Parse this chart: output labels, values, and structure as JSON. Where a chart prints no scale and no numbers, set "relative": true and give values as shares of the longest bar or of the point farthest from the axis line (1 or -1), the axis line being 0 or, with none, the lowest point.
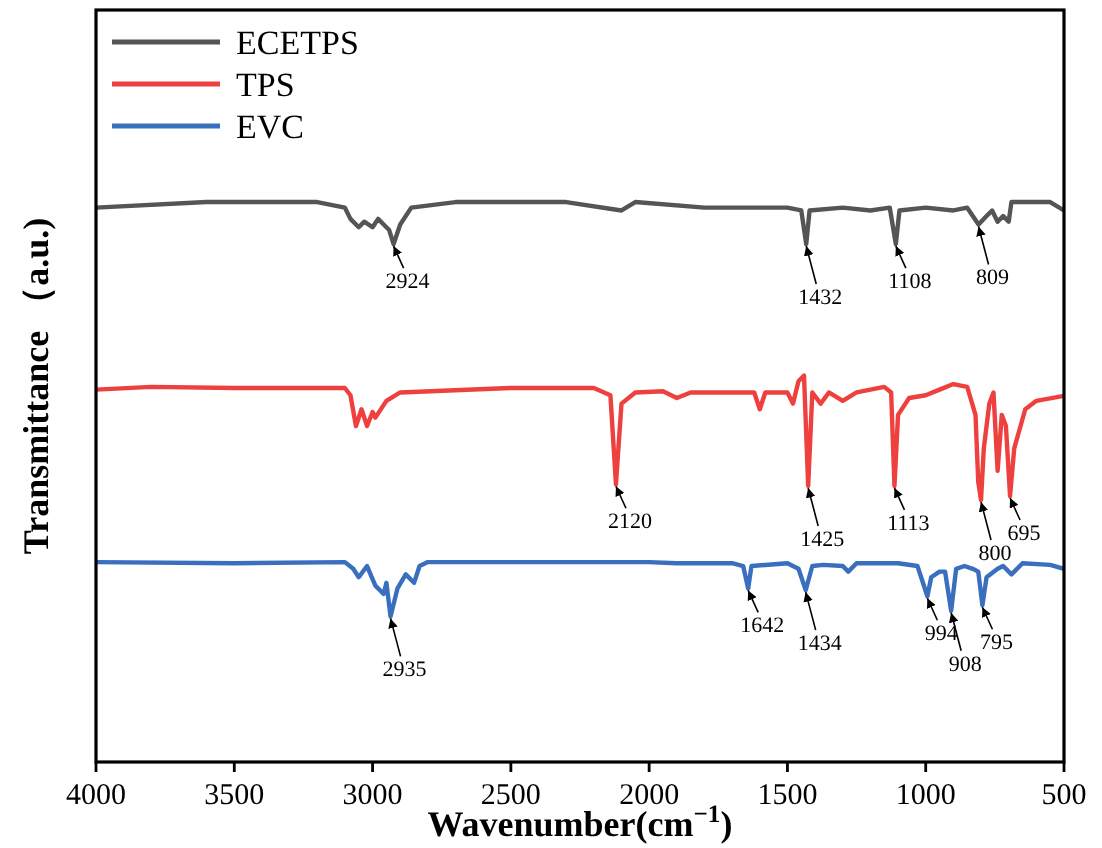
{
  "chart_data": {
    "type": "line",
    "relative": true,
    "xlabel": "Wavenumber(cm$^{−1}$)",
    "ylabel": "Transmittance （a.u.)",
    "xlim": [
      4000,
      500
    ],
    "xticks": [
      4000,
      3500,
      3000,
      2500,
      2000,
      1500,
      1000,
      500
    ],
    "tick_labels": "x",
    "legend": "top left",
    "grid": false,
    "series": [
      {
        "name": "ECETPS",
        "color": "#555555",
        "x": [
          4000,
          3600,
          3200,
          3100,
          3080,
          3050,
          3030,
          3000,
          2980,
          2960,
          2940,
          2924,
          2900,
          2860,
          2700,
          2300,
          2100,
          2050,
          1800,
          1500,
          1450,
          1432,
          1420,
          1300,
          1200,
          1130,
          1108,
          1095,
          1000,
          900,
          850,
          809,
          780,
          760,
          740,
          720,
          700,
          690,
          550,
          500
        ],
        "values": [
          0.99,
          1,
          1,
          0.99,
          0.97,
          0.955,
          0.965,
          0.955,
          0.97,
          0.96,
          0.95,
          0.925,
          0.96,
          0.99,
          1,
          1,
          0.985,
          1,
          0.99,
          0.99,
          0.985,
          0.925,
          0.985,
          0.99,
          0.985,
          0.99,
          0.925,
          0.985,
          0.99,
          0.985,
          0.99,
          0.96,
          0.975,
          0.985,
          0.965,
          0.975,
          0.965,
          1,
          1,
          0.985
        ]
      },
      {
        "name": "TPS",
        "color": "#ef4040",
        "x": [
          4000,
          3800,
          3500,
          3100,
          3080,
          3060,
          3040,
          3020,
          3000,
          2990,
          2950,
          2900,
          2500,
          2200,
          2140,
          2120,
          2100,
          2050,
          1950,
          1900,
          1850,
          1700,
          1620,
          1600,
          1580,
          1500,
          1480,
          1460,
          1440,
          1425,
          1410,
          1380,
          1350,
          1300,
          1250,
          1200,
          1150,
          1125,
          1113,
          1100,
          1060,
          1000,
          950,
          900,
          850,
          820,
          810,
          800,
          790,
          770,
          755,
          740,
          725,
          710,
          695,
          680,
          640,
          600,
          500
        ],
        "values": [
          0.665,
          0.67,
          0.668,
          0.668,
          0.655,
          0.6,
          0.63,
          0.6,
          0.625,
          0.615,
          0.645,
          0.66,
          0.668,
          0.668,
          0.655,
          0.496,
          0.64,
          0.66,
          0.662,
          0.65,
          0.66,
          0.66,
          0.66,
          0.63,
          0.66,
          0.66,
          0.64,
          0.68,
          0.69,
          0.493,
          0.66,
          0.64,
          0.66,
          0.645,
          0.66,
          0.665,
          0.67,
          0.66,
          0.493,
          0.62,
          0.65,
          0.655,
          0.665,
          0.675,
          0.67,
          0.62,
          0.5,
          0.468,
          0.56,
          0.64,
          0.66,
          0.52,
          0.62,
          0.6,
          0.475,
          0.56,
          0.63,
          0.645,
          0.654
        ]
      },
      {
        "name": "EVC",
        "color": "#3a6fbf",
        "x": [
          4000,
          3500,
          3100,
          3070,
          3050,
          3020,
          2990,
          2960,
          2950,
          2935,
          2910,
          2880,
          2850,
          2830,
          2800,
          2500,
          2000,
          1900,
          1700,
          1660,
          1642,
          1630,
          1500,
          1460,
          1434,
          1410,
          1370,
          1300,
          1280,
          1250,
          1100,
          1030,
          994,
          980,
          950,
          930,
          908,
          890,
          860,
          830,
          810,
          795,
          780,
          740,
          720,
          690,
          650,
          550,
          500
        ],
        "values": [
          0.357,
          0.355,
          0.357,
          0.345,
          0.33,
          0.35,
          0.315,
          0.3,
          0.32,
          0.26,
          0.31,
          0.335,
          0.32,
          0.35,
          0.357,
          0.357,
          0.357,
          0.355,
          0.355,
          0.35,
          0.31,
          0.35,
          0.355,
          0.345,
          0.307,
          0.35,
          0.352,
          0.35,
          0.34,
          0.355,
          0.355,
          0.35,
          0.296,
          0.33,
          0.34,
          0.34,
          0.27,
          0.345,
          0.35,
          0.345,
          0.34,
          0.28,
          0.33,
          0.345,
          0.35,
          0.335,
          0.355,
          0.352,
          0.345
        ]
      }
    ],
    "annotations": [
      {
        "text": "2924",
        "x": 2924,
        "y": 0.925
      },
      {
        "text": "1432",
        "x": 1432,
        "y": 0.925
      },
      {
        "text": "1108",
        "x": 1108,
        "y": 0.925
      },
      {
        "text": "809",
        "x": 809,
        "y": 0.96
      },
      {
        "text": "2120",
        "x": 2120,
        "y": 0.496
      },
      {
        "text": "1425",
        "x": 1425,
        "y": 0.493
      },
      {
        "text": "1113",
        "x": 1113,
        "y": 0.493
      },
      {
        "text": "800",
        "x": 800,
        "y": 0.468
      },
      {
        "text": "695",
        "x": 695,
        "y": 0.475
      },
      {
        "text": "2935",
        "x": 2935,
        "y": 0.26
      },
      {
        "text": "1642",
        "x": 1642,
        "y": 0.31
      },
      {
        "text": "1434",
        "x": 1434,
        "y": 0.307
      },
      {
        "text": "994",
        "x": 994,
        "y": 0.296
      },
      {
        "text": "908",
        "x": 908,
        "y": 0.27
      },
      {
        "text": "795",
        "x": 795,
        "y": 0.28
      }
    ]
  }
}
